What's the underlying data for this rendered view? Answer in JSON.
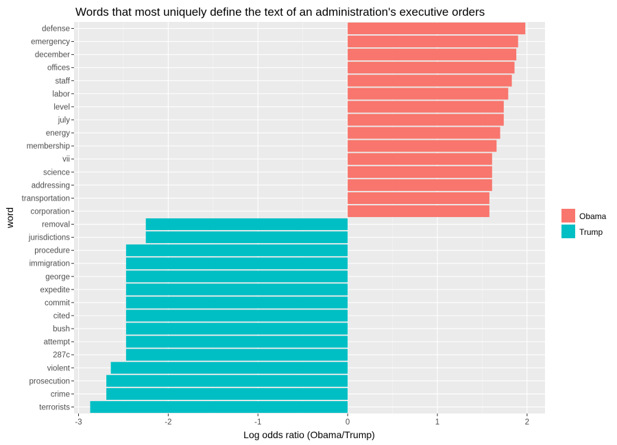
{
  "chart_data": {
    "type": "bar",
    "orientation": "horizontal",
    "title": "Words that most uniquely define the text of an administration's executive orders",
    "xlabel": "Log odds ratio (Obama/Trump)",
    "ylabel": "word",
    "xlim": [
      -3.05,
      2.2
    ],
    "xticks": [
      -3,
      -2,
      -1,
      0,
      1,
      2
    ],
    "grid": true,
    "legend_position": "right",
    "colors": {
      "Obama": "#F8766D",
      "Trump": "#00BFC4"
    },
    "legend": [
      "Obama",
      "Trump"
    ],
    "bars": [
      {
        "word": "defense",
        "value": 1.98,
        "group": "Obama"
      },
      {
        "word": "emergency",
        "value": 1.9,
        "group": "Obama"
      },
      {
        "word": "december",
        "value": 1.88,
        "group": "Obama"
      },
      {
        "word": "offices",
        "value": 1.86,
        "group": "Obama"
      },
      {
        "word": "staff",
        "value": 1.83,
        "group": "Obama"
      },
      {
        "word": "labor",
        "value": 1.79,
        "group": "Obama"
      },
      {
        "word": "level",
        "value": 1.74,
        "group": "Obama"
      },
      {
        "word": "july",
        "value": 1.74,
        "group": "Obama"
      },
      {
        "word": "energy",
        "value": 1.7,
        "group": "Obama"
      },
      {
        "word": "membership",
        "value": 1.66,
        "group": "Obama"
      },
      {
        "word": "vii",
        "value": 1.61,
        "group": "Obama"
      },
      {
        "word": "science",
        "value": 1.61,
        "group": "Obama"
      },
      {
        "word": "addressing",
        "value": 1.61,
        "group": "Obama"
      },
      {
        "word": "transportation",
        "value": 1.58,
        "group": "Obama"
      },
      {
        "word": "corporation",
        "value": 1.58,
        "group": "Obama"
      },
      {
        "word": "removal",
        "value": -2.25,
        "group": "Trump"
      },
      {
        "word": "jurisdictions",
        "value": -2.25,
        "group": "Trump"
      },
      {
        "word": "procedure",
        "value": -2.47,
        "group": "Trump"
      },
      {
        "word": "immigration",
        "value": -2.47,
        "group": "Trump"
      },
      {
        "word": "george",
        "value": -2.47,
        "group": "Trump"
      },
      {
        "word": "expedite",
        "value": -2.47,
        "group": "Trump"
      },
      {
        "word": "commit",
        "value": -2.47,
        "group": "Trump"
      },
      {
        "word": "cited",
        "value": -2.47,
        "group": "Trump"
      },
      {
        "word": "bush",
        "value": -2.47,
        "group": "Trump"
      },
      {
        "word": "attempt",
        "value": -2.47,
        "group": "Trump"
      },
      {
        "word": "287c",
        "value": -2.47,
        "group": "Trump"
      },
      {
        "word": "violent",
        "value": -2.64,
        "group": "Trump"
      },
      {
        "word": "prosecution",
        "value": -2.69,
        "group": "Trump"
      },
      {
        "word": "crime",
        "value": -2.69,
        "group": "Trump"
      },
      {
        "word": "terrorists",
        "value": -2.87,
        "group": "Trump"
      }
    ]
  }
}
